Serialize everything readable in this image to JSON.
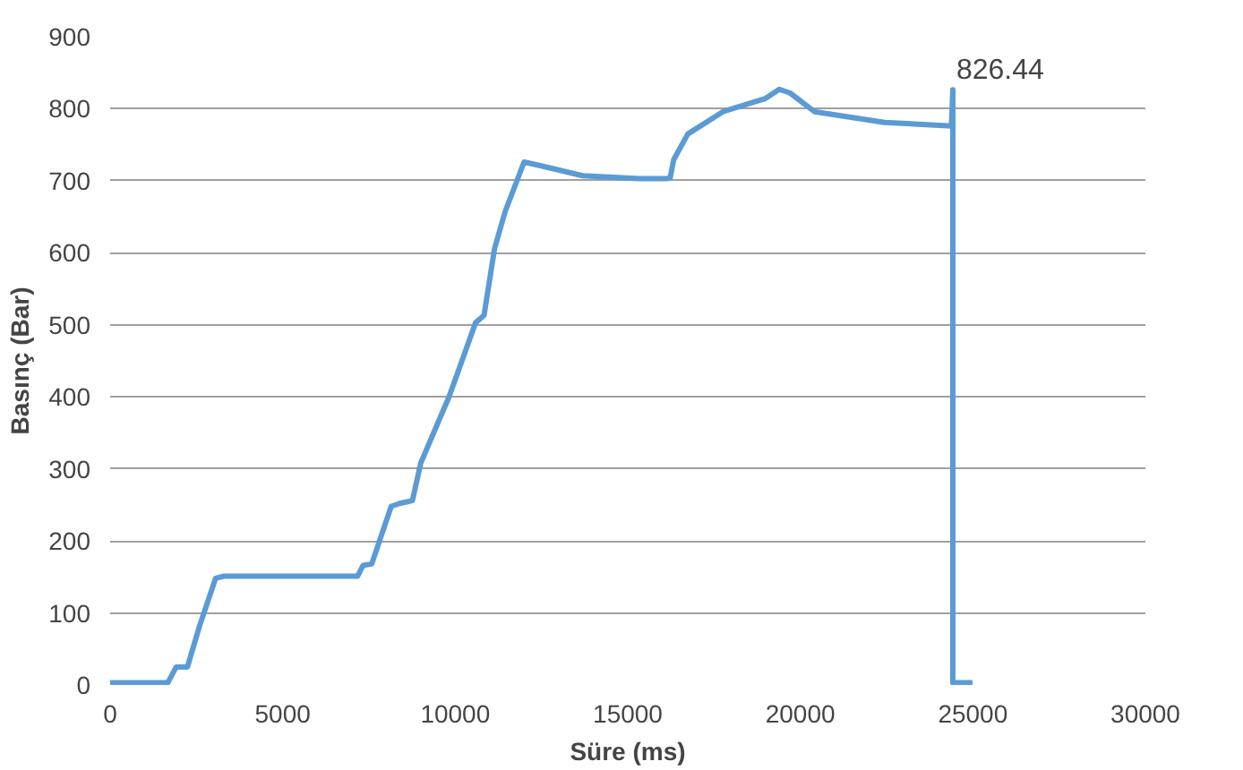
{
  "chart_data": {
    "type": "line",
    "xlabel": "Süre (ms)",
    "ylabel": "Basınç (Bar)",
    "x": [
      0,
      1670,
      1915,
      2240,
      2585,
      3055,
      3300,
      7170,
      7330,
      7580,
      8145,
      8390,
      8760,
      9000,
      9820,
      10590,
      10835,
      11140,
      11445,
      11995,
      12465,
      13690,
      15320,
      16130,
      16230,
      16330,
      16740,
      17760,
      18980,
      19390,
      19700,
      20410,
      22440,
      24380,
      24420,
      24420,
      24990
    ],
    "series": [
      {
        "color": "#5b9bd5",
        "values": [
          3,
          3,
          25,
          25,
          81,
          148,
          151,
          151,
          166,
          168,
          248,
          252,
          256,
          308,
          400,
          503,
          513,
          606,
          657,
          726,
          721,
          707,
          703,
          703,
          704,
          729,
          765,
          796,
          814,
          827,
          822,
          796,
          781,
          776,
          826.44,
          3,
          3
        ]
      }
    ],
    "annotations": [
      {
        "text": "826.44",
        "x": 24420,
        "y": 826.44
      }
    ],
    "xlim": [
      0,
      30000
    ],
    "ylim": [
      0,
      900
    ],
    "xticks": [
      0,
      5000,
      10000,
      15000,
      20000,
      25000,
      30000
    ],
    "yticks": [
      0,
      100,
      200,
      300,
      400,
      500,
      600,
      700,
      800,
      900
    ],
    "grid": "y",
    "marker": "none",
    "line_style": "solid"
  }
}
